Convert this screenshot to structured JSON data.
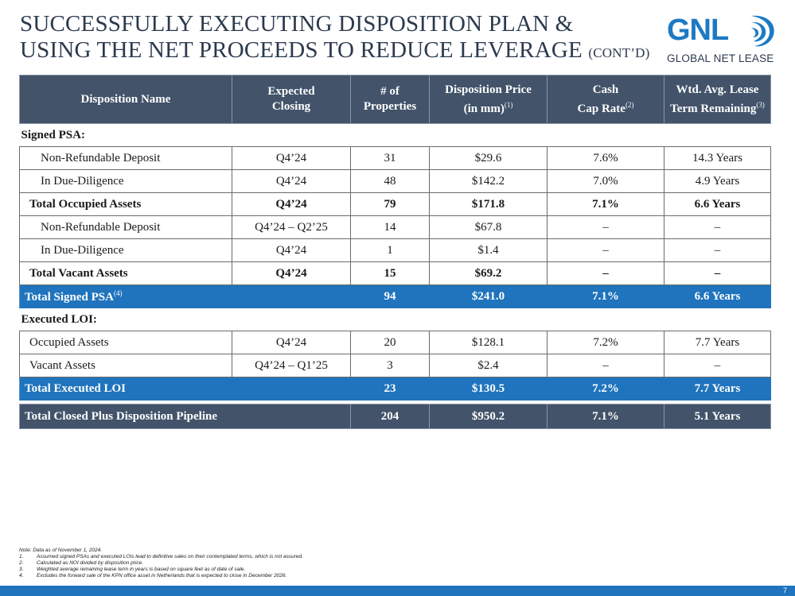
{
  "slide": {
    "title_line1": "SUCCESSFULLY EXECUTING DISPOSITION PLAN &",
    "title_line2": "USING THE NET PROCEEDS TO REDUCE LEVERAGE",
    "title_suffix": "(CONT’D)",
    "page_number": "7"
  },
  "logo": {
    "mark": "GNL",
    "name": "GLOBAL NET LEASE",
    "color": "#1c7ac3"
  },
  "table": {
    "headers": {
      "name": "Disposition Name",
      "closing_l1": "Expected",
      "closing_l2": "Closing",
      "props_l1": "# of",
      "props_l2": "Properties",
      "price_l1": "Disposition Price",
      "price_l2": "(in mm)",
      "price_note": "(1)",
      "cap_l1": "Cash",
      "cap_l2": "Cap Rate",
      "cap_note": "(2)",
      "term_l1": "Wtd. Avg. Lease",
      "term_l2": "Term Remaining",
      "term_note": "(3)"
    },
    "signed_section": "Signed PSA:",
    "signed_rows": [
      {
        "name": "Non-Refundable Deposit",
        "closing": "Q4’24",
        "properties": "31",
        "price": "$29.6",
        "cap": "7.6%",
        "term": "14.3 Years"
      },
      {
        "name": "In Due-Diligence",
        "closing": "Q4’24",
        "properties": "48",
        "price": "$142.2",
        "cap": "7.0%",
        "term": "4.9 Years"
      },
      {
        "name": "Total Occupied Assets",
        "closing": "Q4’24",
        "properties": "79",
        "price": "$171.8",
        "cap": "7.1%",
        "term": "6.6 Years"
      },
      {
        "name": "Non-Refundable Deposit",
        "closing": "Q4’24 – Q2’25",
        "properties": "14",
        "price": "$67.8",
        "cap": "–",
        "term": "–"
      },
      {
        "name": "In Due-Diligence",
        "closing": "Q4’24",
        "properties": "1",
        "price": "$1.4",
        "cap": "–",
        "term": "–"
      },
      {
        "name": "Total Vacant Assets",
        "closing": "Q4’24",
        "properties": "15",
        "price": "$69.2",
        "cap": "–",
        "term": "–"
      }
    ],
    "signed_total": {
      "name": "Total Signed PSA",
      "note": "(4)",
      "closing": "",
      "properties": "94",
      "price": "$241.0",
      "cap": "7.1%",
      "term": "6.6 Years"
    },
    "loi_section": "Executed LOI:",
    "loi_rows": [
      {
        "name": "Occupied Assets",
        "closing": "Q4’24",
        "properties": "20",
        "price": "$128.1",
        "cap": "7.2%",
        "term": "7.7 Years"
      },
      {
        "name": "Vacant Assets",
        "closing": "Q4’24 – Q1’25",
        "properties": "3",
        "price": "$2.4",
        "cap": "–",
        "term": "–"
      }
    ],
    "loi_total": {
      "name": "Total Executed LOI",
      "closing": "",
      "properties": "23",
      "price": "$130.5",
      "cap": "7.2%",
      "term": "7.7 Years"
    },
    "grand_total": {
      "name": "Total Closed Plus Disposition Pipeline",
      "properties": "204",
      "price": "$950.2",
      "cap": "7.1%",
      "term": "5.1 Years"
    }
  },
  "notes": {
    "intro": "Note: Data as of November 1, 2024.",
    "items": [
      {
        "num": "1.",
        "text": "Assumed signed PSAs and executed LOIs lead to definitive sales on their contemplated terms, which is not assured."
      },
      {
        "num": "2.",
        "text": "Calculated as NOI divided by disposition price."
      },
      {
        "num": "3.",
        "text": "Weighted average remaining lease term in years is based on square feet as of date of sale."
      },
      {
        "num": "4.",
        "text": "Excludes the forward sale of the KPN office asset in Netherlands that is expected to close in December 2026."
      }
    ]
  }
}
